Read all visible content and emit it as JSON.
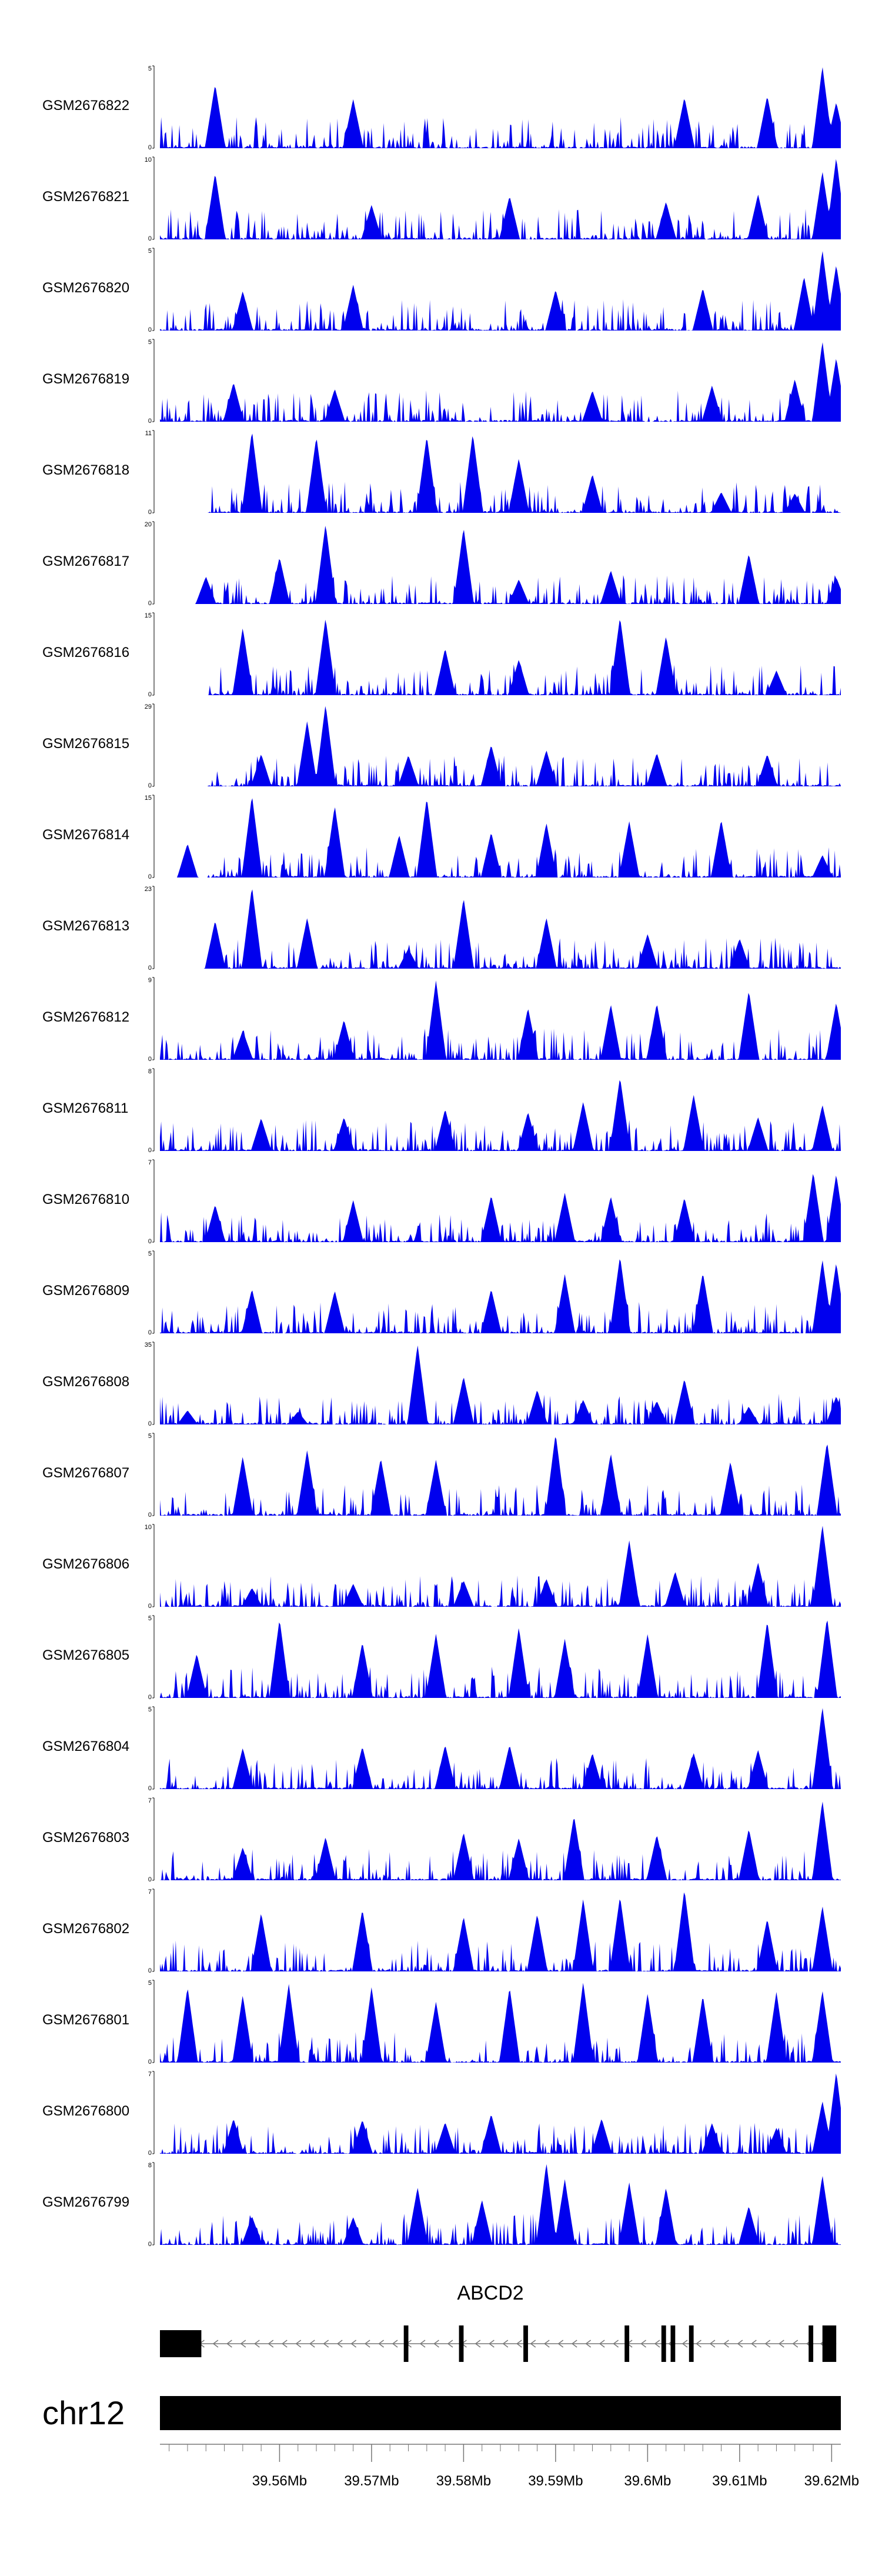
{
  "chart_data": {
    "type": "area",
    "title": "",
    "chromosome": "chr12",
    "region_mb": [
      39.547,
      39.621
    ],
    "colors": {
      "coverage": "#0000ee",
      "axis": "#000000",
      "gene": "#000000"
    },
    "tracks": [
      {
        "name": "GSM2676822",
        "ymax": 5,
        "ymin": 0,
        "peaks": [
          [
            39.553,
            3.9
          ],
          [
            39.568,
            3.0
          ],
          [
            39.604,
            3.1
          ],
          [
            39.613,
            3.2
          ],
          [
            39.619,
            5.0
          ],
          [
            39.6205,
            2.8
          ]
        ]
      },
      {
        "name": "GSM2676821",
        "ymax": 10,
        "ymin": 0,
        "peaks": [
          [
            39.553,
            8.1
          ],
          [
            39.57,
            4.2
          ],
          [
            39.585,
            5.3
          ],
          [
            39.602,
            4.6
          ],
          [
            39.612,
            5.5
          ],
          [
            39.619,
            8.3
          ],
          [
            39.6205,
            10.0
          ]
        ]
      },
      {
        "name": "GSM2676820",
        "ymax": 5,
        "ymin": 0,
        "peaks": [
          [
            39.556,
            2.4
          ],
          [
            39.568,
            2.8
          ],
          [
            39.59,
            2.5
          ],
          [
            39.606,
            2.6
          ],
          [
            39.617,
            3.3
          ],
          [
            39.619,
            4.9
          ],
          [
            39.6205,
            4.0
          ]
        ]
      },
      {
        "name": "GSM2676819",
        "ymax": 5,
        "ymin": 0,
        "peaks": [
          [
            39.555,
            2.4
          ],
          [
            39.566,
            2.0
          ],
          [
            39.594,
            1.9
          ],
          [
            39.607,
            2.2
          ],
          [
            39.616,
            2.6
          ],
          [
            39.619,
            4.9
          ],
          [
            39.6205,
            3.9
          ]
        ]
      },
      {
        "name": "GSM2676818",
        "ymax": 11,
        "ymin": 0,
        "peaks": [
          [
            39.557,
            11.0
          ],
          [
            39.564,
            10.2
          ],
          [
            39.576,
            10.3
          ],
          [
            39.581,
            10.6
          ],
          [
            39.586,
            7.3
          ],
          [
            39.594,
            5.2
          ],
          [
            39.608,
            2.8
          ],
          [
            39.616,
            2.6
          ]
        ]
      },
      {
        "name": "GSM2676817",
        "ymax": 20,
        "ymin": 0,
        "peaks": [
          [
            39.552,
            6.7
          ],
          [
            39.56,
            11.4
          ],
          [
            39.565,
            19.5
          ],
          [
            39.58,
            18.6
          ],
          [
            39.586,
            6.0
          ],
          [
            39.596,
            8.2
          ],
          [
            39.611,
            12.3
          ],
          [
            39.6205,
            6.5
          ]
        ]
      },
      {
        "name": "GSM2676816",
        "ymax": 15,
        "ymin": 0,
        "peaks": [
          [
            39.556,
            12.3
          ],
          [
            39.565,
            14.1
          ],
          [
            39.578,
            8.6
          ],
          [
            39.586,
            6.5
          ],
          [
            39.597,
            14.3
          ],
          [
            39.602,
            10.8
          ],
          [
            39.614,
            4.5
          ]
        ]
      },
      {
        "name": "GSM2676815",
        "ymax": 29,
        "ymin": 0,
        "peaks": [
          [
            39.558,
            11.4
          ],
          [
            39.563,
            23.1
          ],
          [
            39.565,
            29.0
          ],
          [
            39.574,
            11.0
          ],
          [
            39.583,
            14.7
          ],
          [
            39.589,
            12.8
          ],
          [
            39.601,
            11.8
          ],
          [
            39.613,
            11.4
          ]
        ]
      },
      {
        "name": "GSM2676814",
        "ymax": 15,
        "ymin": 0,
        "peaks": [
          [
            39.55,
            6.2
          ],
          [
            39.557,
            15.0
          ],
          [
            39.566,
            13.1
          ],
          [
            39.573,
            7.8
          ],
          [
            39.576,
            14.6
          ],
          [
            39.583,
            8.3
          ],
          [
            39.589,
            10.0
          ],
          [
            39.598,
            10.3
          ],
          [
            39.608,
            10.6
          ],
          [
            39.619,
            4.1
          ]
        ]
      },
      {
        "name": "GSM2676813",
        "ymax": 23,
        "ymin": 0,
        "peaks": [
          [
            39.553,
            13.5
          ],
          [
            39.557,
            23.0
          ],
          [
            39.563,
            14.2
          ],
          [
            39.574,
            5.6
          ],
          [
            39.58,
            19.8
          ],
          [
            39.589,
            14.3
          ],
          [
            39.6,
            9.7
          ],
          [
            39.61,
            8.4
          ]
        ]
      },
      {
        "name": "GSM2676812",
        "ymax": 9,
        "ymin": 0,
        "peaks": [
          [
            39.556,
            3.2
          ],
          [
            39.567,
            4.4
          ],
          [
            39.577,
            8.7
          ],
          [
            39.587,
            5.7
          ],
          [
            39.596,
            6.1
          ],
          [
            39.601,
            6.2
          ],
          [
            39.611,
            7.6
          ],
          [
            39.6205,
            6.3
          ]
        ]
      },
      {
        "name": "GSM2676811",
        "ymax": 8,
        "ymin": 0,
        "peaks": [
          [
            39.558,
            3.2
          ],
          [
            39.567,
            3.3
          ],
          [
            39.578,
            4.1
          ],
          [
            39.587,
            3.8
          ],
          [
            39.593,
            4.8
          ],
          [
            39.597,
            7.2
          ],
          [
            39.605,
            5.5
          ],
          [
            39.612,
            3.3
          ],
          [
            39.619,
            4.5
          ]
        ]
      },
      {
        "name": "GSM2676810",
        "ymax": 7,
        "ymin": 0,
        "peaks": [
          [
            39.553,
            3.2
          ],
          [
            39.568,
            3.6
          ],
          [
            39.583,
            4.0
          ],
          [
            39.591,
            4.2
          ],
          [
            39.596,
            3.9
          ],
          [
            39.604,
            3.8
          ],
          [
            39.618,
            6.0
          ],
          [
            39.6205,
            5.8
          ]
        ]
      },
      {
        "name": "GSM2676809",
        "ymax": 5,
        "ymin": 0,
        "peaks": [
          [
            39.557,
            2.7
          ],
          [
            39.566,
            2.6
          ],
          [
            39.583,
            2.7
          ],
          [
            39.591,
            3.6
          ],
          [
            39.597,
            4.7
          ],
          [
            39.606,
            3.7
          ],
          [
            39.619,
            4.5
          ],
          [
            39.6205,
            4.3
          ]
        ]
      },
      {
        "name": "GSM2676808",
        "ymax": 35,
        "ymin": 0,
        "peaks": [
          [
            39.55,
            6.0
          ],
          [
            39.562,
            5.5
          ],
          [
            39.575,
            34.0
          ],
          [
            39.58,
            20.5
          ],
          [
            39.588,
            14.8
          ],
          [
            39.593,
            10.5
          ],
          [
            39.601,
            10.0
          ],
          [
            39.604,
            19.5
          ],
          [
            39.611,
            7.5
          ],
          [
            39.6205,
            12.0
          ]
        ]
      },
      {
        "name": "GSM2676807",
        "ymax": 5,
        "ymin": 0,
        "peaks": [
          [
            39.556,
            3.6
          ],
          [
            39.563,
            4.0
          ],
          [
            39.571,
            3.5
          ],
          [
            39.577,
            3.4
          ],
          [
            39.59,
            5.0
          ],
          [
            39.596,
            3.8
          ],
          [
            39.609,
            3.3
          ],
          [
            39.6195,
            4.5
          ]
        ]
      },
      {
        "name": "GSM2676806",
        "ymax": 10,
        "ymin": 0,
        "peaks": [
          [
            39.557,
            2.3
          ],
          [
            39.568,
            2.8
          ],
          [
            39.58,
            3.2
          ],
          [
            39.589,
            3.4
          ],
          [
            39.598,
            8.1
          ],
          [
            39.603,
            4.3
          ],
          [
            39.612,
            5.4
          ],
          [
            39.619,
            10.0
          ]
        ]
      },
      {
        "name": "GSM2676805",
        "ymax": 5,
        "ymin": 0,
        "peaks": [
          [
            39.551,
            2.7
          ],
          [
            39.56,
            4.8
          ],
          [
            39.569,
            3.4
          ],
          [
            39.577,
            3.9
          ],
          [
            39.586,
            4.3
          ],
          [
            39.591,
            3.6
          ],
          [
            39.6,
            3.9
          ],
          [
            39.613,
            4.7
          ],
          [
            39.6195,
            4.9
          ]
        ]
      },
      {
        "name": "GSM2676804",
        "ymax": 5,
        "ymin": 0,
        "peaks": [
          [
            39.556,
            2.5
          ],
          [
            39.569,
            2.6
          ],
          [
            39.578,
            2.7
          ],
          [
            39.585,
            2.7
          ],
          [
            39.594,
            2.2
          ],
          [
            39.605,
            2.2
          ],
          [
            39.612,
            2.4
          ],
          [
            39.619,
            5.0
          ]
        ]
      },
      {
        "name": "GSM2676803",
        "ymax": 7,
        "ymin": 0,
        "peaks": [
          [
            39.556,
            2.8
          ],
          [
            39.565,
            3.7
          ],
          [
            39.58,
            4.1
          ],
          [
            39.586,
            3.6
          ],
          [
            39.592,
            5.5
          ],
          [
            39.601,
            3.9
          ],
          [
            39.611,
            4.4
          ],
          [
            39.619,
            6.8
          ]
        ]
      },
      {
        "name": "GSM2676802",
        "ymax": 7,
        "ymin": 0,
        "peaks": [
          [
            39.558,
            5.0
          ],
          [
            39.569,
            5.3
          ],
          [
            39.58,
            4.7
          ],
          [
            39.588,
            4.9
          ],
          [
            39.593,
            6.2
          ],
          [
            39.597,
            6.4
          ],
          [
            39.604,
            7.0
          ],
          [
            39.613,
            4.5
          ],
          [
            39.619,
            5.6
          ]
        ]
      },
      {
        "name": "GSM2676801",
        "ymax": 5,
        "ymin": 0,
        "peaks": [
          [
            39.55,
            4.6
          ],
          [
            39.556,
            4.1
          ],
          [
            39.561,
            4.8
          ],
          [
            39.57,
            4.6
          ],
          [
            39.577,
            3.7
          ],
          [
            39.585,
            4.6
          ],
          [
            39.593,
            4.9
          ],
          [
            39.6,
            4.2
          ],
          [
            39.606,
            4.1
          ],
          [
            39.614,
            4.3
          ],
          [
            39.619,
            4.4
          ]
        ]
      },
      {
        "name": "GSM2676800",
        "ymax": 7,
        "ymin": 0,
        "peaks": [
          [
            39.555,
            3.0
          ],
          [
            39.569,
            2.9
          ],
          [
            39.578,
            2.7
          ],
          [
            39.583,
            3.4
          ],
          [
            39.595,
            3.0
          ],
          [
            39.607,
            2.6
          ],
          [
            39.614,
            2.2
          ],
          [
            39.619,
            4.5
          ],
          [
            39.6205,
            7.0
          ]
        ]
      },
      {
        "name": "GSM2676799",
        "ymax": 8,
        "ymin": 0,
        "peaks": [
          [
            39.557,
            2.8
          ],
          [
            39.568,
            2.7
          ],
          [
            39.575,
            5.6
          ],
          [
            39.582,
            4.4
          ],
          [
            39.589,
            8.0
          ],
          [
            39.591,
            6.4
          ],
          [
            39.598,
            6.1
          ],
          [
            39.602,
            5.6
          ],
          [
            39.611,
            3.8
          ],
          [
            39.619,
            6.8
          ]
        ]
      }
    ],
    "gene": {
      "name": "ABCD2",
      "strand": "-",
      "start": 39.547,
      "end": 39.6205,
      "exons": [
        [
          39.547,
          39.5515
        ],
        [
          39.5735,
          39.574
        ],
        [
          39.5795,
          39.58
        ],
        [
          39.5865,
          39.587
        ],
        [
          39.5975,
          39.598
        ],
        [
          39.6015,
          39.602
        ],
        [
          39.6025,
          39.603
        ],
        [
          39.6045,
          39.605
        ],
        [
          39.6175,
          39.618
        ],
        [
          39.619,
          39.6205
        ]
      ]
    },
    "axis": {
      "ticks": [
        39.56,
        39.57,
        39.58,
        39.59,
        39.6,
        39.61,
        39.62
      ],
      "tick_labels": [
        "39.56Mb",
        "39.57Mb",
        "39.58Mb",
        "39.59Mb",
        "39.6Mb",
        "39.61Mb",
        "39.62Mb"
      ],
      "minor_tick_step_mb": 0.002
    }
  }
}
